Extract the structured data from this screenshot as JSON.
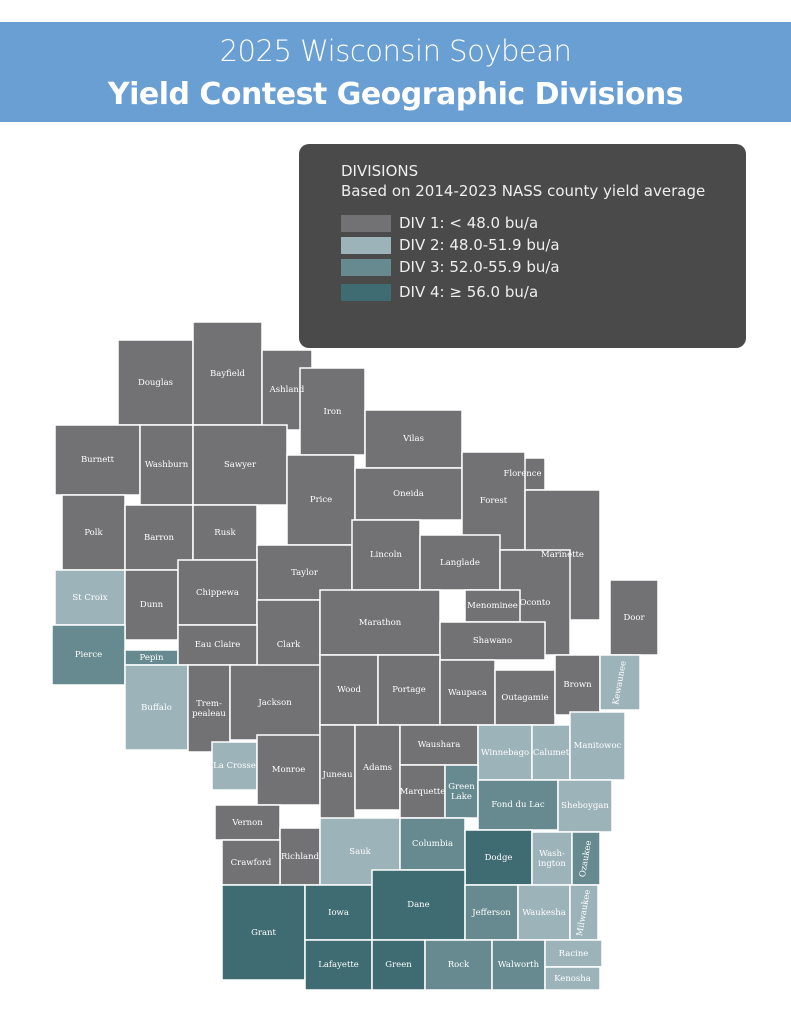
{
  "header": {
    "line1": "2025 Wisconsin Soybean",
    "line2": "Yield Contest Geographic Divisions"
  },
  "legend": {
    "title": "DIVISIONS",
    "subtitle": "Based on 2014-2023 NASS county yield average",
    "items": [
      {
        "label": "DIV 1: < 48.0 bu/a",
        "color": "#727173"
      },
      {
        "label": "DIV 2:  48.0-51.9 bu/a",
        "color": "#9cb3b9"
      },
      {
        "label": "DIV 3:  52.0-55.9 bu/a",
        "color": "#668a90"
      },
      {
        "label": "DIV 4:  ≥ 56.0 bu/a",
        "color": "#3f6b72"
      }
    ]
  },
  "counties": [
    {
      "name": "Douglas",
      "division": 1
    },
    {
      "name": "Bayfield",
      "division": 1
    },
    {
      "name": "Ashland",
      "division": 1
    },
    {
      "name": "Iron",
      "division": 1
    },
    {
      "name": "Vilas",
      "division": 1
    },
    {
      "name": "Florence",
      "division": 1
    },
    {
      "name": "Burnett",
      "division": 1
    },
    {
      "name": "Washburn",
      "division": 1
    },
    {
      "name": "Sawyer",
      "division": 1
    },
    {
      "name": "Price",
      "division": 1
    },
    {
      "name": "Oneida",
      "division": 1
    },
    {
      "name": "Forest",
      "division": 1
    },
    {
      "name": "Marinette",
      "division": 1
    },
    {
      "name": "Polk",
      "division": 1
    },
    {
      "name": "Barron",
      "division": 1
    },
    {
      "name": "Rusk",
      "division": 1
    },
    {
      "name": "Taylor",
      "division": 1
    },
    {
      "name": "Lincoln",
      "division": 1
    },
    {
      "name": "Langlade",
      "division": 1
    },
    {
      "name": "Oconto",
      "division": 1
    },
    {
      "name": "Menominee",
      "division": 1
    },
    {
      "name": "St Croix",
      "division": 2
    },
    {
      "name": "Dunn",
      "division": 1
    },
    {
      "name": "Chippewa",
      "division": 1
    },
    {
      "name": "Clark",
      "division": 1
    },
    {
      "name": "Marathon",
      "division": 1
    },
    {
      "name": "Shawano",
      "division": 1
    },
    {
      "name": "Door",
      "division": 1
    },
    {
      "name": "Pierce",
      "division": 3
    },
    {
      "name": "Pepin",
      "division": 3
    },
    {
      "name": "Eau Claire",
      "division": 1
    },
    {
      "name": "Buffalo",
      "division": 2
    },
    {
      "name": "Trem-\npealeau",
      "division": 1
    },
    {
      "name": "Jackson",
      "division": 1
    },
    {
      "name": "Wood",
      "division": 1
    },
    {
      "name": "Portage",
      "division": 1
    },
    {
      "name": "Waupaca",
      "division": 1
    },
    {
      "name": "Outagamie",
      "division": 1
    },
    {
      "name": "Brown",
      "division": 1
    },
    {
      "name": "Kewaunee",
      "division": 2
    },
    {
      "name": "La Crosse",
      "division": 2
    },
    {
      "name": "Monroe",
      "division": 1
    },
    {
      "name": "Juneau",
      "division": 1
    },
    {
      "name": "Adams",
      "division": 1
    },
    {
      "name": "Waushara",
      "division": 1
    },
    {
      "name": "Winnebago",
      "division": 2
    },
    {
      "name": "Calumet",
      "division": 2
    },
    {
      "name": "Manitowoc",
      "division": 2
    },
    {
      "name": "Marquette",
      "division": 1
    },
    {
      "name": "Green\nLake",
      "division": 3
    },
    {
      "name": "Fond du Lac",
      "division": 3
    },
    {
      "name": "Sheboygan",
      "division": 2
    },
    {
      "name": "Vernon",
      "division": 1
    },
    {
      "name": "Richland",
      "division": 1
    },
    {
      "name": "Sauk",
      "division": 2
    },
    {
      "name": "Columbia",
      "division": 3
    },
    {
      "name": "Dodge",
      "division": 4
    },
    {
      "name": "Wash-\nington",
      "division": 2
    },
    {
      "name": "Ozaukee",
      "division": 3
    },
    {
      "name": "Crawford",
      "division": 1
    },
    {
      "name": "Grant",
      "division": 4
    },
    {
      "name": "Iowa",
      "division": 4
    },
    {
      "name": "Dane",
      "division": 4
    },
    {
      "name": "Jefferson",
      "division": 3
    },
    {
      "name": "Waukesha",
      "division": 2
    },
    {
      "name": "Milwaukee",
      "division": 2
    },
    {
      "name": "Lafayette",
      "division": 4
    },
    {
      "name": "Green",
      "division": 4
    },
    {
      "name": "Rock",
      "division": 3
    },
    {
      "name": "Walworth",
      "division": 3
    },
    {
      "name": "Racine",
      "division": 2
    },
    {
      "name": "Kenosha",
      "division": 2
    }
  ]
}
